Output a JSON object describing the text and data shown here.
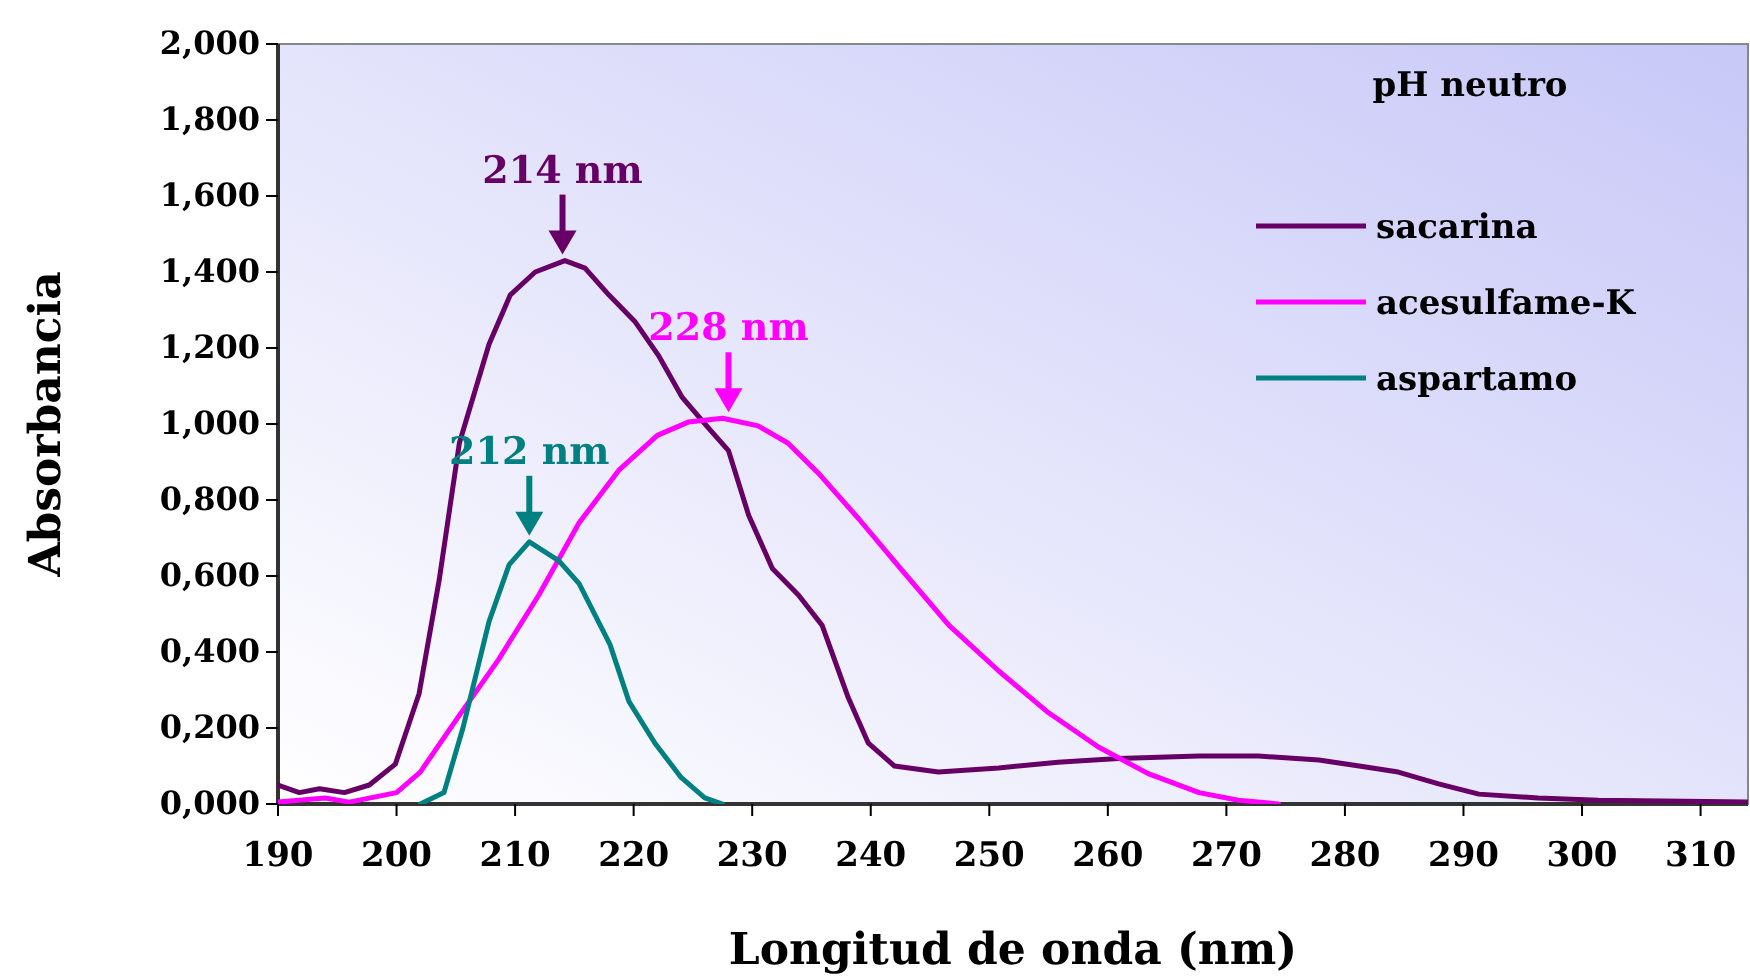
{
  "chart_data": {
    "type": "line",
    "xlabel": "Longitud de onda (nm)",
    "ylabel": "Absorbancia",
    "legend_title": "pH neutro",
    "legend": "top right",
    "grid": false,
    "marker": "none",
    "line_style": "solid",
    "xlim": [
      190,
      314
    ],
    "xticks": [
      190,
      200,
      210,
      220,
      230,
      240,
      250,
      260,
      270,
      280,
      290,
      300,
      310
    ],
    "ylim": [
      0,
      2
    ],
    "yticks": [
      {
        "value": 0,
        "label": "0,000"
      },
      {
        "value": 0.2,
        "label": "0,200"
      },
      {
        "value": 0.4,
        "label": "0,400"
      },
      {
        "value": 0.6,
        "label": "0,600"
      },
      {
        "value": 0.8,
        "label": "0,800"
      },
      {
        "value": 1,
        "label": "1,000"
      },
      {
        "value": 1.2,
        "label": "1,200"
      },
      {
        "value": 1.4,
        "label": "1,400"
      },
      {
        "value": 1.6,
        "label": "1,600"
      },
      {
        "value": 1.8,
        "label": "1,800"
      },
      {
        "value": 2,
        "label": "2,000"
      }
    ],
    "series": [
      {
        "name": "sacarina",
        "color": "#660066",
        "x": [
          190,
          191.8,
          193.5,
          195.6,
          197.7,
          199.9,
          201.9,
          203.6,
          205.3,
          207.8,
          209.6,
          211.7,
          214.2,
          215.9,
          217.9,
          220.1,
          222.1,
          224.1,
          226.3,
          228,
          229.7,
          231.7,
          233.9,
          235.9,
          238.1,
          239.8,
          242,
          245.7,
          250.8,
          255.8,
          260.9,
          267.7,
          272.7,
          277.8,
          281.2,
          284.5,
          287.9,
          291.3,
          296.3,
          301.4,
          314
        ],
        "values": [
          0.05,
          0.03,
          0.04,
          0.03,
          0.05,
          0.105,
          0.29,
          0.59,
          0.95,
          1.21,
          1.34,
          1.4,
          1.43,
          1.41,
          1.34,
          1.27,
          1.18,
          1.07,
          0.99,
          0.93,
          0.76,
          0.62,
          0.55,
          0.47,
          0.28,
          0.16,
          0.1,
          0.084,
          0.095,
          0.11,
          0.12,
          0.126,
          0.126,
          0.116,
          0.1,
          0.084,
          0.053,
          0.026,
          0.016,
          0.01,
          0.005
        ]
      },
      {
        "name": "acesulfame-K",
        "color": "#ff00ff",
        "x": [
          190,
          194,
          196,
          200,
          202,
          205,
          208.6,
          212,
          215.4,
          218.8,
          222,
          224.6,
          227.5,
          230.5,
          233,
          235.6,
          239,
          242.5,
          246.6,
          250.8,
          255,
          259.2,
          263.4,
          267.7,
          271,
          274.4
        ],
        "values": [
          0.005,
          0.016,
          0.005,
          0.03,
          0.084,
          0.22,
          0.38,
          0.55,
          0.74,
          0.88,
          0.97,
          1.005,
          1.015,
          0.995,
          0.95,
          0.87,
          0.75,
          0.62,
          0.47,
          0.35,
          0.24,
          0.15,
          0.08,
          0.03,
          0.01,
          0
        ]
      },
      {
        "name": "aspartamo",
        "color": "#008080",
        "x": [
          202,
          204,
          205.6,
          207.8,
          209.5,
          211.2,
          213.7,
          215.4,
          218,
          219.6,
          221.8,
          224,
          226,
          227.5
        ],
        "values": [
          0,
          0.03,
          0.2,
          0.48,
          0.63,
          0.69,
          0.64,
          0.58,
          0.42,
          0.27,
          0.16,
          0.07,
          0.016,
          0
        ]
      }
    ],
    "annotations": [
      {
        "text": "214 nm",
        "x": 214,
        "y": 1.43
      },
      {
        "text": "228 nm",
        "x": 228,
        "y": 1.015
      },
      {
        "text": "212 nm",
        "x": 211.2,
        "y": 0.69
      }
    ]
  }
}
